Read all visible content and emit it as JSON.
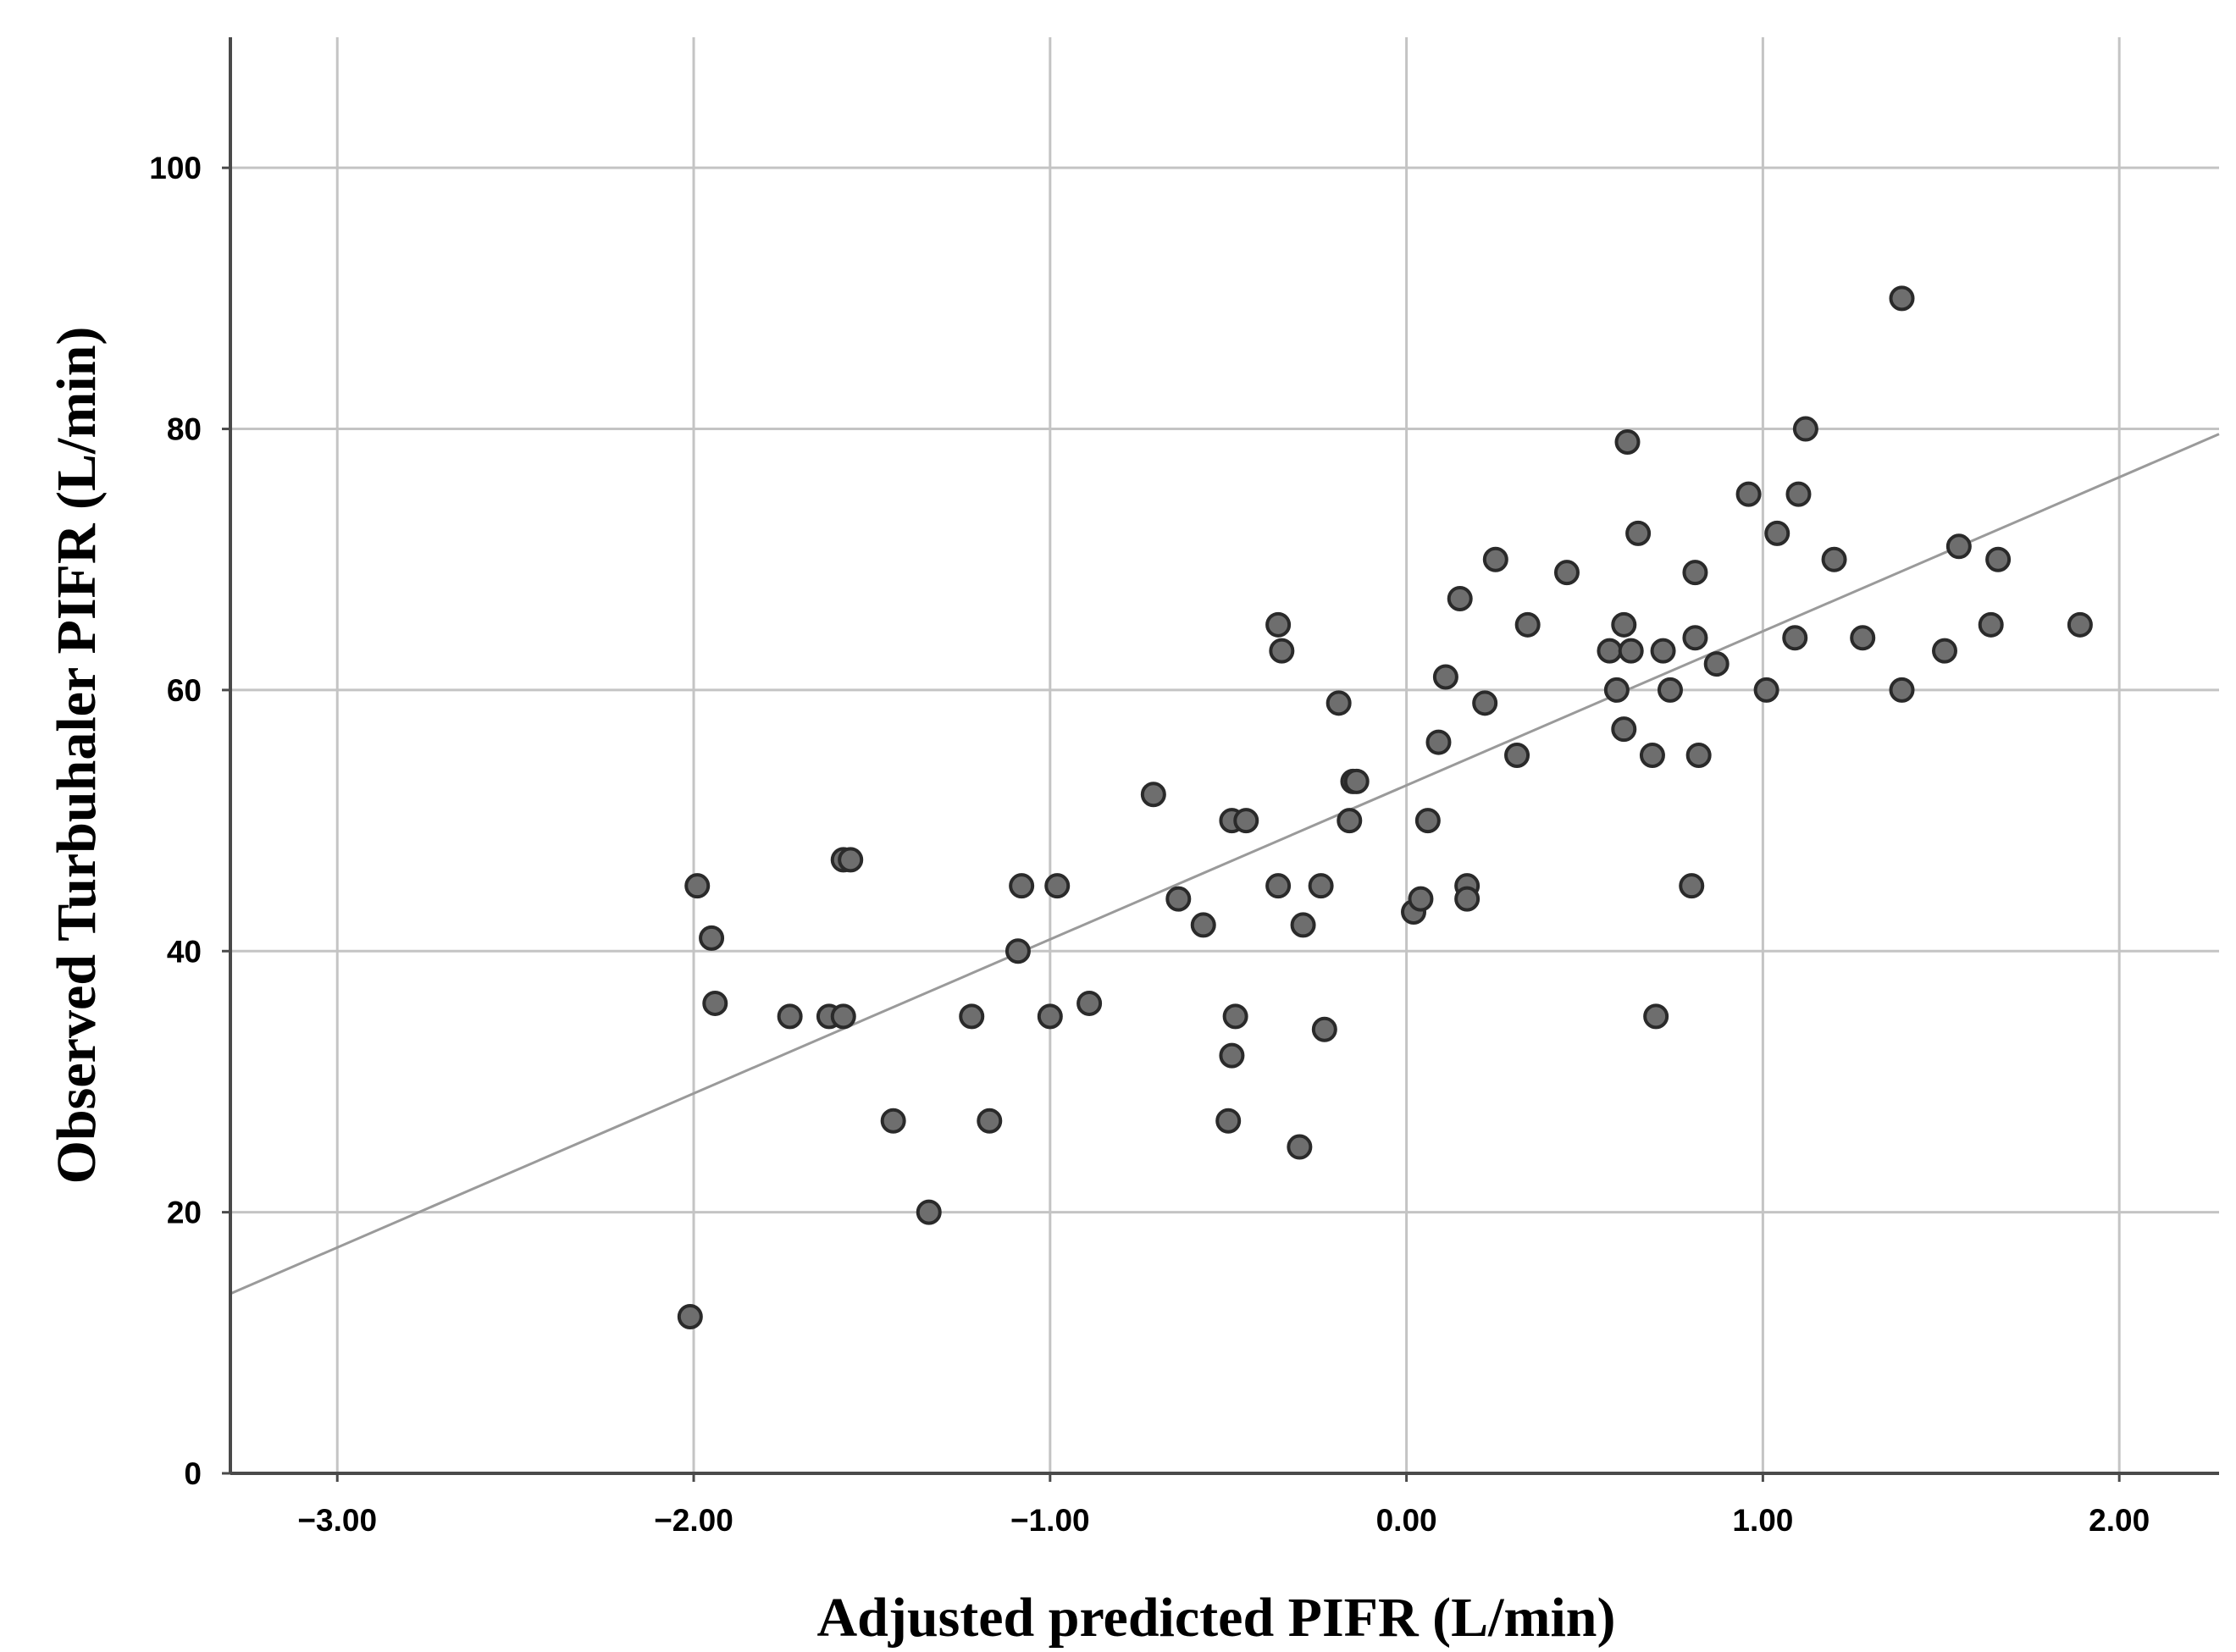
{
  "chart_data": {
    "type": "scatter",
    "title": "",
    "xlabel": "Adjusted predicted PIFR (L/min)",
    "ylabel": "Observed Turbuhaler PIFR (L/min)",
    "xlim": [
      -3.3,
      2.28
    ],
    "ylim": [
      0,
      110
    ],
    "x_ticks": [
      -3,
      -2,
      -1,
      0,
      1,
      2
    ],
    "x_tick_labels": [
      "-3.00",
      "-2.00",
      "-1.00",
      "0.00",
      "1.00",
      "2.00"
    ],
    "y_ticks": [
      0,
      20,
      40,
      60,
      80,
      100
    ],
    "y_tick_labels": [
      "0",
      "20",
      "40",
      "60",
      "80",
      "100"
    ],
    "grid": true,
    "series": [
      {
        "name": "observations",
        "points": [
          [
            -2.01,
            12
          ],
          [
            -1.99,
            45
          ],
          [
            -1.95,
            41
          ],
          [
            -1.94,
            36
          ],
          [
            -1.73,
            35
          ],
          [
            -1.62,
            35
          ],
          [
            -1.58,
            35
          ],
          [
            -1.58,
            47
          ],
          [
            -1.56,
            47
          ],
          [
            -1.44,
            27
          ],
          [
            -1.34,
            20
          ],
          [
            -1.22,
            35
          ],
          [
            -1.17,
            27
          ],
          [
            -1.08,
            45
          ],
          [
            -1.09,
            40
          ],
          [
            -1.0,
            35
          ],
          [
            -0.98,
            45
          ],
          [
            -0.89,
            36
          ],
          [
            -0.71,
            52
          ],
          [
            -0.64,
            44
          ],
          [
            -0.57,
            42
          ],
          [
            -0.5,
            27
          ],
          [
            -0.49,
            32
          ],
          [
            -0.48,
            35
          ],
          [
            -0.49,
            50
          ],
          [
            -0.45,
            50
          ],
          [
            -0.36,
            45
          ],
          [
            -0.36,
            65
          ],
          [
            -0.35,
            63
          ],
          [
            -0.29,
            42
          ],
          [
            -0.3,
            25
          ],
          [
            -0.24,
            45
          ],
          [
            -0.23,
            34
          ],
          [
            -0.19,
            59
          ],
          [
            -0.16,
            50
          ],
          [
            -0.15,
            53
          ],
          [
            -0.14,
            53
          ],
          [
            0.02,
            43
          ],
          [
            0.04,
            44
          ],
          [
            0.06,
            50
          ],
          [
            0.09,
            56
          ],
          [
            0.11,
            61
          ],
          [
            0.15,
            67
          ],
          [
            0.17,
            45
          ],
          [
            0.17,
            44
          ],
          [
            0.22,
            59
          ],
          [
            0.25,
            70
          ],
          [
            0.31,
            55
          ],
          [
            0.34,
            65
          ],
          [
            0.45,
            69
          ],
          [
            0.57,
            63
          ],
          [
            0.59,
            60
          ],
          [
            0.61,
            57
          ],
          [
            0.61,
            65
          ],
          [
            0.62,
            79
          ],
          [
            0.63,
            63
          ],
          [
            0.65,
            72
          ],
          [
            0.69,
            55
          ],
          [
            0.7,
            35
          ],
          [
            0.72,
            63
          ],
          [
            0.74,
            60
          ],
          [
            0.8,
            45
          ],
          [
            0.81,
            64
          ],
          [
            0.81,
            69
          ],
          [
            0.82,
            55
          ],
          [
            0.87,
            62
          ],
          [
            0.96,
            75
          ],
          [
            1.01,
            60
          ],
          [
            1.04,
            72
          ],
          [
            1.09,
            64
          ],
          [
            1.1,
            75
          ],
          [
            1.12,
            80
          ],
          [
            1.2,
            70
          ],
          [
            1.28,
            64
          ],
          [
            1.39,
            90
          ],
          [
            1.39,
            60
          ],
          [
            1.51,
            63
          ],
          [
            1.55,
            71
          ],
          [
            1.64,
            65
          ],
          [
            1.66,
            70
          ],
          [
            1.89,
            65
          ]
        ]
      }
    ],
    "fit_line": {
      "slope": 11.8,
      "intercept": 52.7
    }
  }
}
